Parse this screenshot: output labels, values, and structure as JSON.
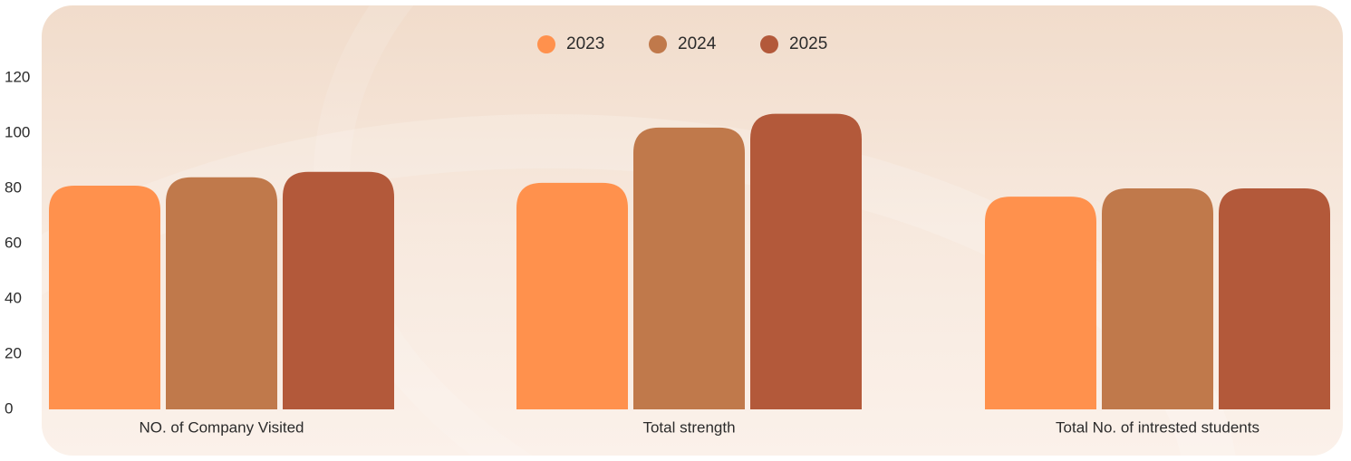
{
  "chart_data": {
    "type": "bar",
    "categories": [
      "NO. of Company Visited",
      "Total strength",
      "Total No. of intrested students"
    ],
    "series": [
      {
        "name": "2023",
        "color": "#ff914d",
        "values": [
          81,
          82,
          77
        ]
      },
      {
        "name": "2024",
        "color": "#c0794b",
        "values": [
          84,
          102,
          80
        ]
      },
      {
        "name": "2025",
        "color": "#b3593a",
        "values": [
          86,
          107,
          80
        ]
      }
    ],
    "ylim": [
      0,
      120
    ],
    "yticks": [
      0,
      20,
      40,
      60,
      80,
      100,
      120
    ],
    "legend_position": "top-center",
    "grid": false
  }
}
